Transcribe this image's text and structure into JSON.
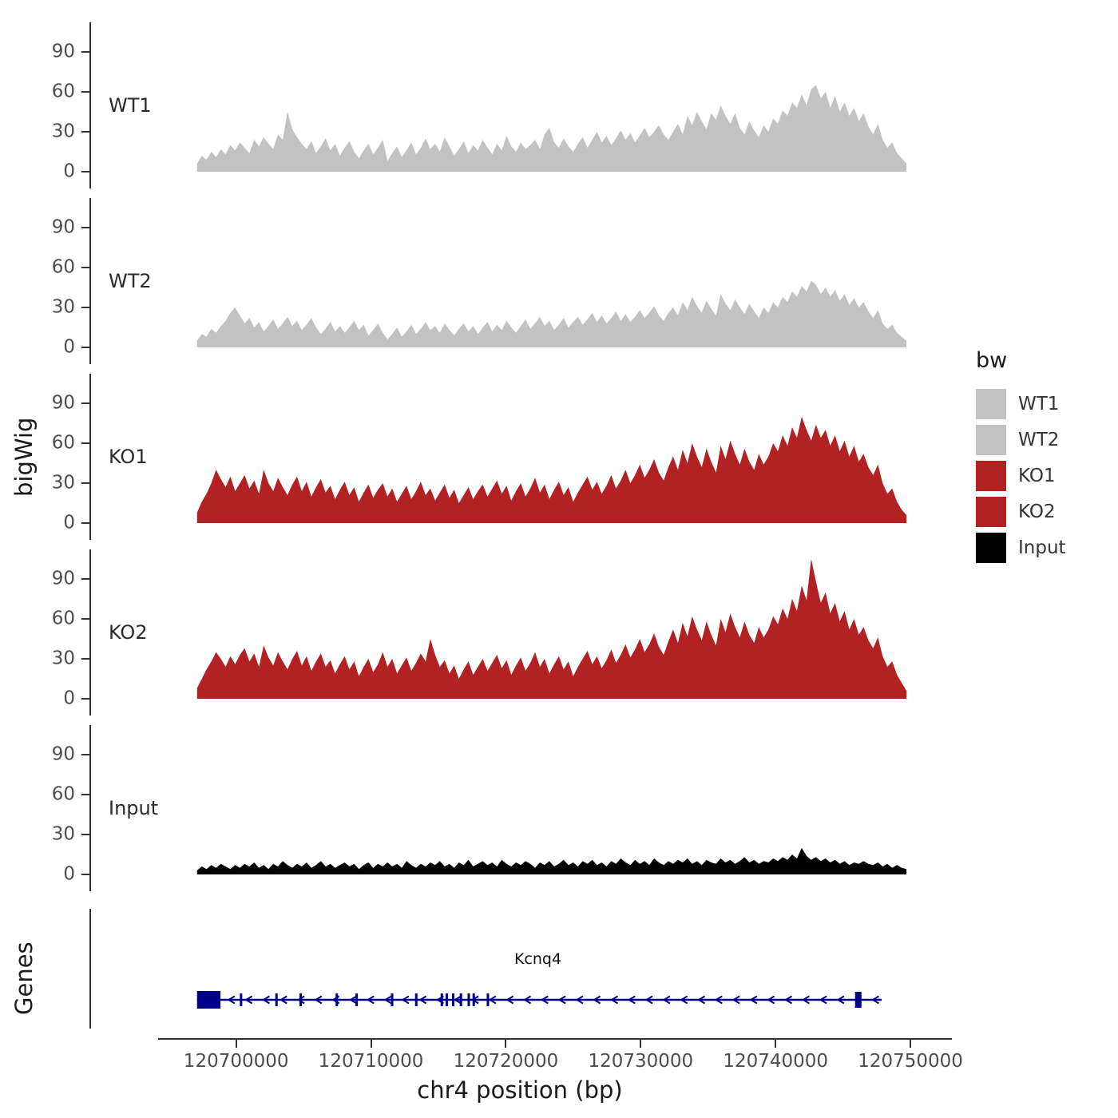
{
  "chart_data": {
    "type": "area",
    "title": "",
    "xlabel": "chr4 position (bp)",
    "ylabel": "bigWig",
    "grid": false,
    "legend_position": "right",
    "x_range": [
      120697000,
      120749700
    ],
    "x_ticks": [
      120700000,
      120710000,
      120720000,
      120730000,
      120740000,
      120750000
    ],
    "x_tick_labels": [
      "120700000",
      "120710000",
      "120720000",
      "120730000",
      "120740000",
      "120750000"
    ],
    "y_ticks": [
      0,
      30,
      60,
      90
    ],
    "y_max": 112,
    "tracks": [
      {
        "name": "WT1",
        "color": "#C2C2C2",
        "values": [
          6,
          12,
          9,
          15,
          11,
          17,
          13,
          20,
          16,
          22,
          18,
          14,
          24,
          19,
          26,
          21,
          17,
          28,
          24,
          45,
          32,
          26,
          21,
          17,
          23,
          14,
          19,
          25,
          16,
          21,
          12,
          18,
          23,
          15,
          10,
          16,
          21,
          13,
          18,
          24,
          8,
          14,
          19,
          11,
          16,
          22,
          13,
          18,
          25,
          17,
          21,
          15,
          26,
          19,
          12,
          17,
          23,
          14,
          20,
          16,
          24,
          18,
          13,
          21,
          16,
          27,
          19,
          15,
          22,
          17,
          20,
          24,
          17,
          28,
          33,
          22,
          18,
          25,
          19,
          15,
          21,
          26,
          18,
          24,
          30,
          22,
          27,
          20,
          25,
          31,
          24,
          29,
          22,
          27,
          33,
          26,
          30,
          35,
          28,
          24,
          30,
          36,
          28,
          42,
          35,
          45,
          38,
          32,
          44,
          39,
          50,
          42,
          36,
          44,
          33,
          28,
          38,
          31,
          26,
          35,
          30,
          40,
          36,
          46,
          42,
          52,
          48,
          58,
          50,
          62,
          65,
          55,
          60,
          48,
          57,
          45,
          52,
          42,
          48,
          38,
          44,
          34,
          28,
          36,
          24,
          18,
          22,
          14,
          10,
          6
        ]
      },
      {
        "name": "WT2",
        "color": "#C2C2C2",
        "values": [
          5,
          10,
          8,
          14,
          11,
          16,
          20,
          26,
          30,
          24,
          18,
          22,
          15,
          19,
          12,
          16,
          21,
          14,
          18,
          23,
          16,
          20,
          13,
          17,
          22,
          15,
          10,
          14,
          19,
          12,
          16,
          11,
          15,
          20,
          13,
          17,
          9,
          13,
          18,
          11,
          6,
          10,
          15,
          8,
          12,
          17,
          10,
          14,
          19,
          13,
          16,
          11,
          18,
          13,
          9,
          14,
          18,
          12,
          16,
          10,
          15,
          19,
          12,
          17,
          13,
          20,
          15,
          11,
          16,
          21,
          14,
          18,
          23,
          16,
          20,
          13,
          17,
          22,
          15,
          19,
          23,
          17,
          21,
          26,
          19,
          24,
          18,
          22,
          27,
          20,
          25,
          19,
          23,
          28,
          22,
          26,
          31,
          24,
          20,
          26,
          30,
          24,
          34,
          28,
          38,
          31,
          26,
          35,
          29,
          24,
          40,
          33,
          28,
          36,
          30,
          25,
          33,
          27,
          22,
          30,
          26,
          34,
          30,
          38,
          34,
          42,
          38,
          46,
          42,
          50,
          47,
          40,
          45,
          38,
          43,
          35,
          40,
          32,
          37,
          30,
          34,
          27,
          22,
          28,
          18,
          14,
          17,
          11,
          8,
          5
        ]
      },
      {
        "name": "KO1",
        "color": "#B22222",
        "values": [
          8,
          16,
          22,
          30,
          40,
          33,
          27,
          35,
          24,
          30,
          36,
          26,
          32,
          22,
          40,
          30,
          24,
          34,
          27,
          21,
          29,
          35,
          24,
          31,
          20,
          27,
          33,
          23,
          28,
          18,
          25,
          31,
          21,
          27,
          16,
          23,
          29,
          19,
          25,
          30,
          20,
          26,
          16,
          22,
          28,
          18,
          24,
          31,
          21,
          26,
          17,
          23,
          29,
          19,
          25,
          15,
          21,
          27,
          18,
          24,
          29,
          20,
          26,
          32,
          22,
          28,
          17,
          24,
          30,
          20,
          26,
          34,
          23,
          29,
          18,
          25,
          31,
          21,
          27,
          16,
          23,
          29,
          35,
          25,
          31,
          22,
          28,
          36,
          26,
          32,
          40,
          30,
          36,
          44,
          34,
          40,
          48,
          38,
          32,
          42,
          50,
          40,
          55,
          45,
          60,
          50,
          42,
          56,
          46,
          38,
          58,
          48,
          62,
          52,
          44,
          56,
          46,
          40,
          52,
          44,
          50,
          60,
          54,
          66,
          58,
          72,
          64,
          80,
          70,
          62,
          74,
          64,
          70,
          58,
          66,
          54,
          62,
          50,
          58,
          46,
          52,
          42,
          36,
          44,
          30,
          22,
          26,
          16,
          10,
          6
        ]
      },
      {
        "name": "KO2",
        "color": "#B22222",
        "values": [
          8,
          15,
          22,
          28,
          35,
          30,
          24,
          32,
          26,
          33,
          38,
          28,
          34,
          24,
          40,
          31,
          25,
          35,
          28,
          22,
          30,
          36,
          25,
          32,
          21,
          28,
          34,
          24,
          29,
          19,
          26,
          32,
          22,
          28,
          17,
          24,
          30,
          20,
          26,
          35,
          24,
          30,
          19,
          25,
          31,
          21,
          27,
          34,
          28,
          45,
          33,
          24,
          29,
          19,
          25,
          15,
          22,
          28,
          18,
          24,
          30,
          21,
          27,
          33,
          23,
          29,
          18,
          25,
          31,
          21,
          27,
          35,
          24,
          30,
          19,
          26,
          32,
          22,
          28,
          17,
          24,
          30,
          36,
          26,
          32,
          23,
          29,
          37,
          27,
          33,
          41,
          31,
          37,
          45,
          35,
          41,
          49,
          39,
          33,
          43,
          52,
          42,
          57,
          47,
          62,
          52,
          44,
          58,
          48,
          40,
          60,
          50,
          64,
          54,
          46,
          58,
          48,
          42,
          54,
          46,
          52,
          62,
          56,
          68,
          60,
          75,
          66,
          85,
          74,
          105,
          88,
          72,
          80,
          64,
          72,
          58,
          66,
          52,
          60,
          48,
          54,
          44,
          38,
          46,
          32,
          24,
          28,
          18,
          12,
          6
        ]
      },
      {
        "name": "Input",
        "color": "#000000",
        "values": [
          3,
          6,
          4,
          7,
          5,
          8,
          6,
          4,
          7,
          5,
          8,
          6,
          9,
          5,
          7,
          4,
          8,
          6,
          10,
          7,
          5,
          8,
          6,
          9,
          5,
          7,
          10,
          6,
          8,
          5,
          7,
          9,
          6,
          8,
          4,
          7,
          9,
          5,
          8,
          6,
          9,
          6,
          8,
          5,
          10,
          7,
          5,
          8,
          6,
          9,
          7,
          10,
          6,
          8,
          5,
          9,
          7,
          11,
          6,
          8,
          10,
          7,
          9,
          6,
          11,
          8,
          6,
          9,
          7,
          10,
          8,
          5,
          9,
          7,
          10,
          6,
          8,
          11,
          7,
          9,
          6,
          10,
          8,
          11,
          7,
          9,
          6,
          10,
          8,
          12,
          9,
          7,
          11,
          8,
          10,
          7,
          12,
          9,
          7,
          10,
          8,
          11,
          9,
          12,
          8,
          10,
          7,
          11,
          9,
          8,
          12,
          9,
          11,
          8,
          10,
          13,
          9,
          11,
          8,
          10,
          9,
          12,
          10,
          13,
          11,
          15,
          12,
          20,
          14,
          11,
          13,
          10,
          12,
          9,
          11,
          8,
          10,
          7,
          9,
          8,
          10,
          8,
          7,
          9,
          6,
          8,
          5,
          7,
          5,
          4
        ]
      }
    ],
    "genes": {
      "panel_label": "Genes",
      "gene": {
        "name": "Kcnq4",
        "color": "#00008B",
        "strand": "-",
        "start_frac": 0.0,
        "end_frac": 0.965,
        "first_exon": [
          0.0,
          0.033
        ],
        "exons": [
          0.062,
          0.112,
          0.146,
          0.197,
          0.225,
          0.275,
          0.309,
          0.345,
          0.352,
          0.361,
          0.372,
          0.383,
          0.39,
          0.41
        ],
        "tall_exon": 0.932,
        "arrow_span": [
          0.048,
          0.956
        ],
        "arrow_count": 38
      }
    },
    "legend": {
      "title": "bw",
      "entries": [
        {
          "label": "WT1",
          "color": "#C2C2C2"
        },
        {
          "label": "WT2",
          "color": "#C2C2C2"
        },
        {
          "label": "KO1",
          "color": "#B22222"
        },
        {
          "label": "KO2",
          "color": "#B22222"
        },
        {
          "label": "Input",
          "color": "#000000"
        }
      ]
    }
  }
}
